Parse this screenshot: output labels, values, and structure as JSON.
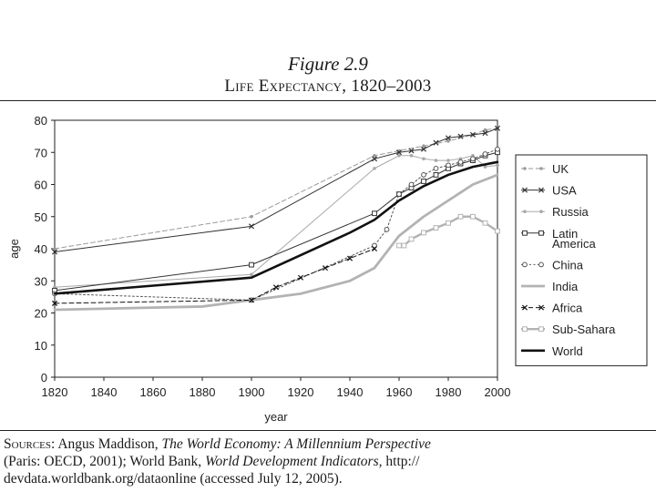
{
  "figure": {
    "label": "Figure 2.9",
    "title": "Life Expectancy, 1820–2003"
  },
  "sources": {
    "lead": "Sources:",
    "author1": "Angus Maddison,",
    "book": "The World Economy: A Millennium Perspective",
    "pub1": "(Paris: OECD, 2001); World Bank,",
    "report": "World Development Indicators,",
    "link_start": "http://",
    "link_rest": "devdata.worldbank.org/dataonline",
    "accessed": "(accessed July 12, 2005)."
  },
  "chart_data": {
    "type": "line",
    "title": "Life Expectancy, 1820–2003",
    "xlabel": "year",
    "ylabel": "age",
    "xlim": [
      1820,
      2000
    ],
    "ylim": [
      0,
      80
    ],
    "xticks": [
      1820,
      1840,
      1860,
      1880,
      1900,
      1920,
      1940,
      1960,
      1980,
      2000
    ],
    "yticks": [
      0,
      10,
      20,
      30,
      40,
      50,
      60,
      70,
      80
    ],
    "legend_position": "right",
    "series": [
      {
        "name": "UK",
        "legend": [
          "UK"
        ],
        "color": "#9a9a9a",
        "dash": "dashed",
        "marker": "dot",
        "width": 1,
        "x": [
          1820,
          1900,
          1950,
          1960,
          1970,
          1980,
          1990,
          1995,
          2000
        ],
        "y": [
          40,
          50,
          69,
          70.5,
          72,
          73.5,
          75.5,
          77,
          77.5
        ]
      },
      {
        "name": "USA",
        "legend": [
          "USA"
        ],
        "color": "#333333",
        "dash": "solid",
        "marker": "x",
        "width": 1,
        "x": [
          1820,
          1900,
          1950,
          1960,
          1965,
          1970,
          1975,
          1980,
          1985,
          1990,
          1995,
          2000
        ],
        "y": [
          39,
          47,
          68,
          70,
          70.5,
          71,
          73,
          74.5,
          75,
          75.5,
          76,
          77.5
        ]
      },
      {
        "name": "Russia",
        "legend": [
          "Russia"
        ],
        "color": "#a8a8a8",
        "dash": "solid",
        "marker": "dot",
        "width": 1,
        "x": [
          1820,
          1900,
          1950,
          1960,
          1965,
          1970,
          1975,
          1980,
          1985,
          1990,
          1995,
          2000
        ],
        "y": [
          28,
          32,
          65,
          69,
          69,
          68,
          67.5,
          67.5,
          68,
          69,
          65.5,
          66
        ]
      },
      {
        "name": "Latin America",
        "legend": [
          "Latin",
          "America"
        ],
        "color": "#333333",
        "dash": "solid",
        "marker": "square",
        "width": 1,
        "x": [
          1820,
          1900,
          1950,
          1960,
          1965,
          1970,
          1975,
          1980,
          1985,
          1990,
          1995,
          2000
        ],
        "y": [
          27,
          35,
          51,
          57,
          59,
          61,
          63,
          65,
          66.5,
          67.5,
          69,
          70
        ]
      },
      {
        "name": "China",
        "legend": [
          "China"
        ],
        "color": "#555555",
        "dash": "dotted",
        "marker": "circle",
        "width": 1,
        "x": [
          1820,
          1900,
          1950,
          1955,
          1960,
          1965,
          1970,
          1975,
          1980,
          1985,
          1990,
          1995,
          2000
        ],
        "y": [
          26,
          24,
          41,
          46,
          57,
          60,
          63,
          65,
          66,
          67,
          68,
          69.5,
          71
        ]
      },
      {
        "name": "India",
        "legend": [
          "India"
        ],
        "color": "#b3b3b3",
        "dash": "solid",
        "marker": "none",
        "width": 2.8,
        "x": [
          1820,
          1880,
          1900,
          1920,
          1940,
          1950,
          1955,
          1960,
          1970,
          1980,
          1990,
          2000
        ],
        "y": [
          21,
          22,
          24,
          26,
          30,
          34,
          39,
          44,
          50,
          55,
          60,
          63
        ]
      },
      {
        "name": "Africa",
        "legend": [
          "Africa"
        ],
        "color": "#111111",
        "dash": "dashed",
        "marker": "x",
        "width": 1,
        "x": [
          1820,
          1900,
          1910,
          1920,
          1930,
          1940,
          1950
        ],
        "y": [
          23,
          24,
          28,
          31,
          34,
          37,
          40
        ]
      },
      {
        "name": "Sub-Sahara",
        "legend": [
          "Sub-Sahara"
        ],
        "color": "#b3b3b3",
        "dash": "solid",
        "marker": "square",
        "width": 2.4,
        "x": [
          1960,
          1962,
          1965,
          1970,
          1975,
          1980,
          1985,
          1990,
          1995,
          2000
        ],
        "y": [
          41,
          41,
          43,
          45,
          46.5,
          48,
          50,
          50,
          48,
          45.5
        ]
      },
      {
        "name": "World",
        "legend": [
          "World"
        ],
        "color": "#111111",
        "dash": "solid",
        "marker": "none",
        "width": 2.6,
        "x": [
          1820,
          1900,
          1920,
          1940,
          1950,
          1960,
          1970,
          1980,
          1990,
          2000
        ],
        "y": [
          26,
          31,
          38,
          45,
          49,
          55,
          59.5,
          63,
          65.5,
          67
        ]
      }
    ]
  }
}
